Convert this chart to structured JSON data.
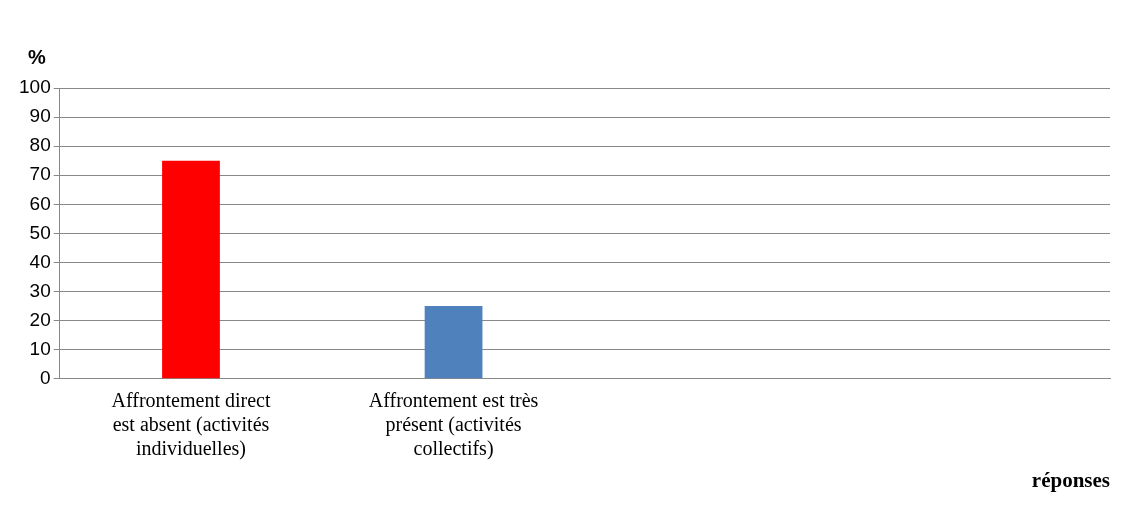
{
  "chart_data": {
    "type": "bar",
    "ylabel": "%",
    "xlabel": "réponses",
    "categories": [
      "Affrontement direct est absent (activités individuelles)",
      "Affrontement est très présent (activités collectifs)",
      null,
      null
    ],
    "values": [
      75,
      25,
      null,
      null
    ],
    "colors": [
      "#ff0000",
      "#4f81bd",
      null,
      null
    ],
    "ylim": [
      0,
      100
    ],
    "yticks": [
      0,
      10,
      20,
      30,
      40,
      50,
      60,
      70,
      80,
      90,
      100
    ],
    "grid": "y",
    "legend": false
  }
}
